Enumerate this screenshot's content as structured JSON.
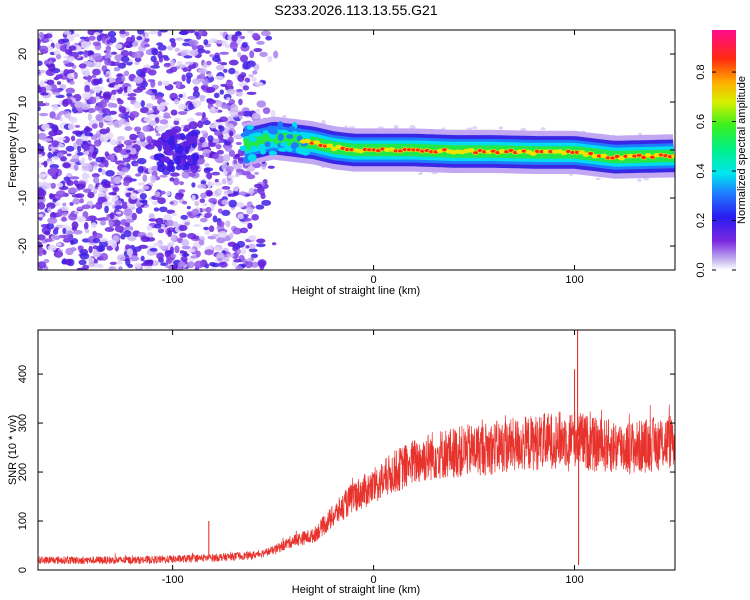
{
  "title": "S233.2026.113.13.55.G21",
  "colors": {
    "snr_line": "#e8322c",
    "noise": "#7b2be0",
    "frame": "#000000"
  },
  "chart_data": [
    {
      "type": "heatmap",
      "title": "S233.2026.113.13.55.G21",
      "xlabel": "Height of straight line (km)",
      "ylabel": "Frequency (Hz)",
      "xlim": [
        -167,
        150
      ],
      "ylim": [
        -25,
        25
      ],
      "x_ticks": [
        -100,
        0,
        100
      ],
      "x_tick_labels": [
        "-100",
        "0",
        "100"
      ],
      "y_ticks": [
        20,
        10,
        0,
        -10,
        -20
      ],
      "y_tick_labels": [
        "20",
        "10",
        "0",
        "-10",
        "-20"
      ],
      "colorbar": {
        "label": "Normalized spectral amplitude",
        "colormap": "rainbow (violet-blue-cyan-green-yellow-red-magenta)",
        "range": [
          0,
          0.97
        ],
        "ticks": [
          0.0,
          0.2,
          0.4,
          0.6,
          0.8
        ],
        "tick_labels": [
          "0.0",
          "0.2",
          "0.4",
          "0.6",
          "0.8"
        ]
      },
      "ridge": {
        "description": "signal ridge near 0 Hz",
        "points": [
          {
            "x": -65,
            "y": 1.0
          },
          {
            "x": -50,
            "y": 2.5
          },
          {
            "x": -40,
            "y": 2.0
          },
          {
            "x": -30,
            "y": 1.5
          },
          {
            "x": -20,
            "y": 0.5
          },
          {
            "x": -10,
            "y": 0.0
          },
          {
            "x": 0,
            "y": 0.0
          },
          {
            "x": 20,
            "y": 0.0
          },
          {
            "x": 40,
            "y": -0.3
          },
          {
            "x": 60,
            "y": -0.3
          },
          {
            "x": 80,
            "y": -0.5
          },
          {
            "x": 100,
            "y": -0.5
          },
          {
            "x": 120,
            "y": -1.5
          },
          {
            "x": 150,
            "y": -1.2
          }
        ]
      },
      "noise_region": {
        "x_from": -167,
        "x_to": -60,
        "intensity": "scattered low amplitude"
      }
    },
    {
      "type": "line",
      "xlabel": "Height of straight line (km)",
      "ylabel": "SNR (10 * v/v)",
      "xlim": [
        -167,
        150
      ],
      "ylim": [
        0,
        490
      ],
      "x_ticks": [
        -100,
        0,
        100
      ],
      "x_tick_labels": [
        "-100",
        "0",
        "100"
      ],
      "y_ticks": [
        0,
        100,
        200,
        300,
        400
      ],
      "y_tick_labels": [
        "0",
        "100",
        "200",
        "300",
        "400"
      ],
      "trend": [
        {
          "x": -167,
          "y": 20
        },
        {
          "x": -120,
          "y": 20
        },
        {
          "x": -100,
          "y": 22
        },
        {
          "x": -80,
          "y": 25
        },
        {
          "x": -60,
          "y": 30
        },
        {
          "x": -50,
          "y": 40
        },
        {
          "x": -40,
          "y": 60
        },
        {
          "x": -30,
          "y": 70
        },
        {
          "x": -20,
          "y": 110
        },
        {
          "x": -10,
          "y": 150
        },
        {
          "x": 0,
          "y": 170
        },
        {
          "x": 10,
          "y": 200
        },
        {
          "x": 20,
          "y": 220
        },
        {
          "x": 30,
          "y": 235
        },
        {
          "x": 50,
          "y": 245
        },
        {
          "x": 70,
          "y": 255
        },
        {
          "x": 90,
          "y": 265
        },
        {
          "x": 100,
          "y": 270
        },
        {
          "x": 110,
          "y": 255
        },
        {
          "x": 130,
          "y": 250
        },
        {
          "x": 150,
          "y": 265
        }
      ],
      "spikes": [
        {
          "x": -82,
          "y": 100
        },
        {
          "x": 100,
          "y": 410
        },
        {
          "x": 101.5,
          "y": 490
        },
        {
          "x": 102,
          "y": 10
        }
      ]
    }
  ]
}
